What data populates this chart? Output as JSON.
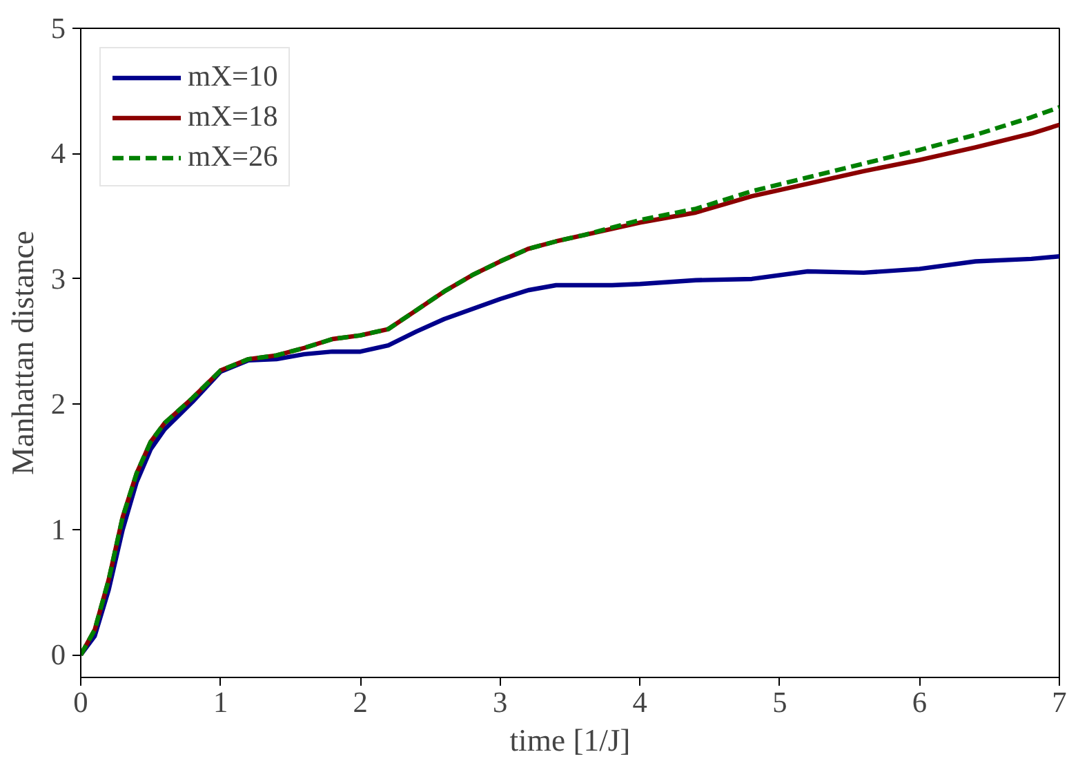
{
  "chart_data": {
    "type": "line",
    "xlabel": "time [1/J]",
    "ylabel": "Manhattan distance",
    "x": [
      0,
      0.1,
      0.2,
      0.3,
      0.4,
      0.5,
      0.6,
      0.8,
      1.0,
      1.2,
      1.4,
      1.6,
      1.8,
      2.0,
      2.2,
      2.4,
      2.6,
      2.8,
      3.0,
      3.2,
      3.4,
      3.6,
      3.8,
      4.0,
      4.4,
      4.8,
      5.2,
      5.6,
      6.0,
      6.4,
      6.8,
      7.0
    ],
    "series": [
      {
        "name": "mX=10",
        "color": "#00008b",
        "line_style": "solid",
        "values": [
          0,
          0.15,
          0.52,
          1.0,
          1.38,
          1.64,
          1.8,
          2.02,
          2.26,
          2.35,
          2.36,
          2.4,
          2.42,
          2.42,
          2.47,
          2.58,
          2.68,
          2.76,
          2.84,
          2.91,
          2.95,
          2.95,
          2.95,
          2.96,
          2.99,
          3.0,
          3.06,
          3.05,
          3.08,
          3.14,
          3.16,
          3.18
        ]
      },
      {
        "name": "mX=18",
        "color": "#8b0000",
        "line_style": "solid",
        "values": [
          0,
          0.2,
          0.6,
          1.1,
          1.45,
          1.7,
          1.85,
          2.05,
          2.27,
          2.36,
          2.39,
          2.45,
          2.52,
          2.55,
          2.6,
          2.75,
          2.9,
          3.03,
          3.14,
          3.24,
          3.3,
          3.35,
          3.4,
          3.45,
          3.53,
          3.66,
          3.76,
          3.86,
          3.95,
          4.05,
          4.16,
          4.23
        ]
      },
      {
        "name": "mX=26",
        "color": "#008000",
        "line_style": "dashed",
        "values": [
          0,
          0.2,
          0.6,
          1.1,
          1.45,
          1.7,
          1.85,
          2.05,
          2.27,
          2.36,
          2.39,
          2.45,
          2.52,
          2.55,
          2.6,
          2.75,
          2.9,
          3.03,
          3.14,
          3.24,
          3.3,
          3.35,
          3.41,
          3.47,
          3.56,
          3.7,
          3.81,
          3.92,
          4.03,
          4.15,
          4.29,
          4.37
        ]
      }
    ],
    "xlim": [
      0,
      7
    ],
    "xticks": [
      0,
      1,
      2,
      3,
      4,
      5,
      6,
      7
    ],
    "ylim": [
      -0.18,
      5
    ],
    "yticks": [
      0,
      1,
      2,
      3,
      4,
      5
    ],
    "grid": false,
    "legend": "top left"
  }
}
